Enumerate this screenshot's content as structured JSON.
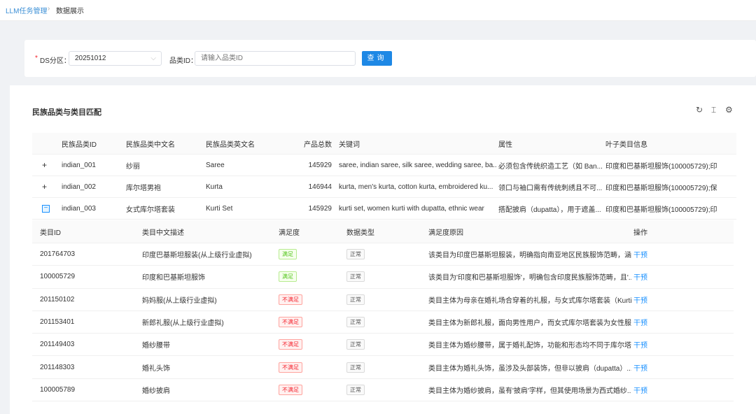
{
  "breadcrumb": {
    "parent": "LLM任务管理",
    "separator": "›",
    "current": "数据展示"
  },
  "filter": {
    "ds_label": "DS分区：",
    "required_mark": "*",
    "ds_value": "20251012",
    "category_label": "品类ID：",
    "category_placeholder": "请输入品类ID",
    "query_label": "查询"
  },
  "section": {
    "title": "民族品类与类目匹配",
    "icons": [
      "refresh-icon",
      "column-height-icon",
      "settings-icon"
    ]
  },
  "main_table": {
    "headers": [
      "民族品类ID",
      "民族品类中文名",
      "民族品类英文名",
      "产品总数",
      "关键词",
      "属性",
      "叶子类目信息"
    ],
    "rows": [
      {
        "expand": "+",
        "id": "indian_001",
        "cn": "纱丽",
        "en": "Saree",
        "total": "145929",
        "keywords": "saree, indian saree, silk saree, wedding saree, ba...",
        "attr": "必须包含传统织造工艺（如 Ban...",
        "leaf": "印度和巴基斯坦服饰(100005729);印度..."
      },
      {
        "expand": "+",
        "id": "indian_002",
        "cn": "库尔塔男袍",
        "en": "Kurta",
        "total": "146944",
        "keywords": "kurta, men's kurta, cotton kurta, embroidered ku...",
        "attr": "领口与袖口需有传统刺绣且不可...",
        "leaf": "印度和巴基斯坦服饰(100005729);保守..."
      },
      {
        "expand": "−",
        "id": "indian_003",
        "cn": "女式库尔塔套装",
        "en": "Kurti Set",
        "total": "145929",
        "keywords": "kurti set, women kurti with dupatta, ethnic wear",
        "attr": "搭配披肩（dupatta），用于遮盖...",
        "leaf": "印度和巴基斯坦服饰(100005729);印度..."
      }
    ]
  },
  "sub_table": {
    "headers": [
      "类目ID",
      "类目中文描述",
      "满足度",
      "数据类型",
      "满足度原因",
      "操作"
    ],
    "rows": [
      {
        "id": "201764703",
        "desc": "印度巴基斯坦服装(从上级行业虚拟)",
        "sat": "满足",
        "sat_ok": true,
        "type": "正常",
        "reason": "该类目为印度巴基斯坦服装，明确指向南亚地区民族服饰范畴，涵...",
        "op": "干预"
      },
      {
        "id": "100005729",
        "desc": "印度和巴基斯坦服饰",
        "sat": "满足",
        "sat_ok": true,
        "type": "正常",
        "reason": "该类目为'印度和巴基斯坦服饰'，明确包含印度民族服饰范畴，且'...",
        "op": "干预"
      },
      {
        "id": "201150102",
        "desc": "妈妈服(从上级行业虚拟)",
        "sat": "不满足",
        "sat_ok": false,
        "type": "正常",
        "reason": "类目主体为母亲在婚礼场合穿着的礼服，与女式库尔塔套装（Kurti ...",
        "op": "干预"
      },
      {
        "id": "201153401",
        "desc": "新郎礼服(从上级行业虚拟)",
        "sat": "不满足",
        "sat_ok": false,
        "type": "正常",
        "reason": "类目主体为新郎礼服，面向男性用户，而女式库尔塔套装为女性服...",
        "op": "干预"
      },
      {
        "id": "201149403",
        "desc": "婚纱腰带",
        "sat": "不满足",
        "sat_ok": false,
        "type": "正常",
        "reason": "类目主体为婚纱腰带，属于婚礼配饰，功能和形态均不同于库尔塔...",
        "op": "干预"
      },
      {
        "id": "201148303",
        "desc": "婚礼头饰",
        "sat": "不满足",
        "sat_ok": false,
        "type": "正常",
        "reason": "类目主体为婚礼头饰，虽涉及头部装饰，但非以披肩（dupatta）...",
        "op": "干预"
      },
      {
        "id": "100005789",
        "desc": "婚纱披肩",
        "sat": "不满足",
        "sat_ok": false,
        "type": "正常",
        "reason": "类目主体为婚纱披肩，虽有'披肩'字样，但其使用场景为西式婚纱...",
        "op": "干预"
      }
    ]
  },
  "colors": {
    "primary": "#1e88e5",
    "link": "#1890ff",
    "success": "#52c41a",
    "error": "#f5222d",
    "background": "#f0f2f5"
  }
}
